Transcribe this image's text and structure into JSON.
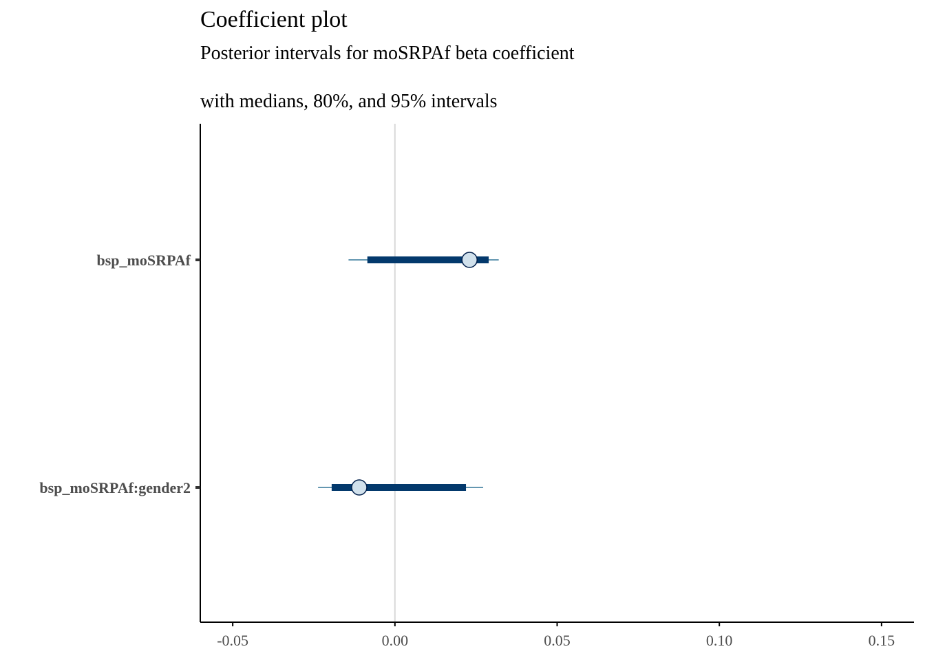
{
  "chart_data": {
    "type": "scatter",
    "title": "Coefficient plot",
    "subtitle": "Posterior intervals for moSRPAf beta coefficient",
    "subtitle2": "with medians, 80%, and 95% intervals",
    "xlabel": "",
    "ylabel": "",
    "xlim": [
      -0.06,
      0.16
    ],
    "x_ticks": [
      -0.05,
      0.0,
      0.05,
      0.1,
      0.15
    ],
    "x_tick_labels": [
      "-0.05",
      "0.00",
      "0.05",
      "0.10",
      "0.15"
    ],
    "grid": false,
    "reference_line": 0,
    "categories": [
      "bsp_moSRPAf",
      "bsp_moSRPAf:gender2"
    ],
    "series": [
      {
        "values": [
          {
            "label": "bsp_moSRPAf",
            "median": 0.023,
            "ci80": [
              -0.0085,
              0.0289
            ],
            "ci95": [
              -0.0143,
              0.032
            ]
          },
          {
            "label": "bsp_moSRPAf:gender2",
            "median": -0.011,
            "ci80": [
              -0.0195,
              0.0219
            ],
            "ci95": [
              -0.0237,
              0.0272
            ]
          }
        ]
      }
    ],
    "colors": {
      "outer_line": "#6497b1",
      "inner_line": "#03396c",
      "point_fill": "#d1e1ec",
      "point_stroke": "#011f4b",
      "vline": "#d9d9d9",
      "axis": "#000000"
    }
  }
}
